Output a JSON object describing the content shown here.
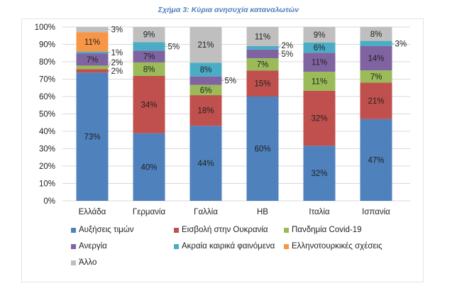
{
  "chart_data": {
    "type": "bar",
    "stacked": "100%",
    "title": "Σχήμα 3: Κύρια ανησυχία καταναλωτών",
    "categories": [
      "Ελλάδα",
      "Γερμανία",
      "Γαλλία",
      "ΗΒ",
      "Ιταλία",
      "Ισπανία"
    ],
    "ylim": [
      0,
      100
    ],
    "yticks": [
      "0%",
      "10%",
      "20%",
      "30%",
      "40%",
      "50%",
      "60%",
      "70%",
      "80%",
      "90%",
      "100%"
    ],
    "grid": true,
    "legend_position": "bottom",
    "series": [
      {
        "name": "Αυξήσεις τιμών",
        "color": "#4F81BD",
        "values": [
          73,
          40,
          44,
          60,
          32,
          47
        ]
      },
      {
        "name": "Εισβολή στην Ουκρανία",
        "color": "#C0504D",
        "values": [
          2,
          34,
          18,
          15,
          32,
          21
        ]
      },
      {
        "name": "Πανδημία Covid-19",
        "color": "#9BBB59",
        "values": [
          2,
          8,
          6,
          7,
          11,
          7
        ]
      },
      {
        "name": "Ανεργία",
        "color": "#8064A2",
        "values": [
          7,
          7,
          5,
          5,
          11,
          14
        ]
      },
      {
        "name": "Ακραία καιρικά φαινόμενα",
        "color": "#4BACC6",
        "values": [
          1,
          5,
          8,
          2,
          6,
          3
        ]
      },
      {
        "name": "Ελληνοτουρκικές σχέσεις",
        "color": "#F79646",
        "values": [
          11,
          0,
          0,
          0,
          0,
          0
        ]
      },
      {
        "name": "Άλλο",
        "color": "#BFBFBF",
        "values": [
          3,
          9,
          21,
          11,
          9,
          8
        ]
      }
    ]
  }
}
